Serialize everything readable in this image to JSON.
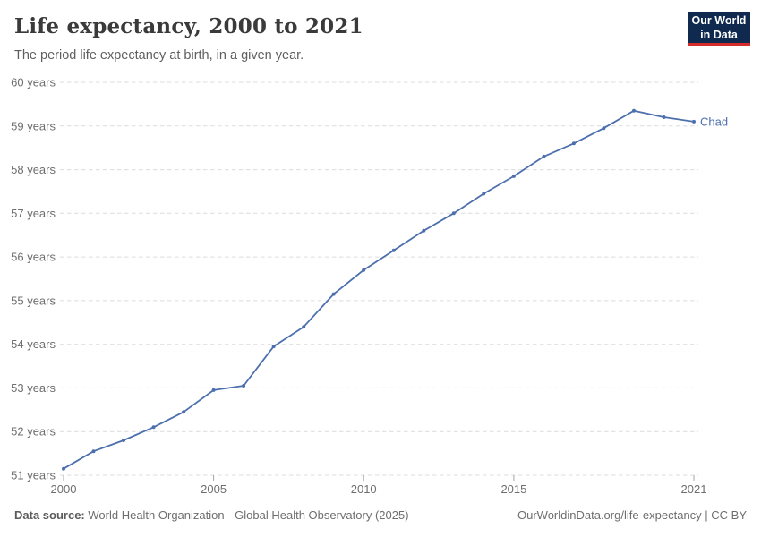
{
  "header": {
    "title": "Life expectancy, 2000 to 2021",
    "subtitle": "The period life expectancy at birth, in a given year."
  },
  "logo": {
    "line1": "Our World",
    "line2": "in Data"
  },
  "footer": {
    "source_label": "Data source:",
    "source_text": "World Health Organization - Global Health Observatory (2025)",
    "right_text": "OurWorldinData.org/life-expectancy | CC BY"
  },
  "chart_data": {
    "type": "line",
    "title": "Life expectancy, 2000 to 2021",
    "xlabel": "",
    "ylabel": "years",
    "x": [
      2000,
      2001,
      2002,
      2003,
      2004,
      2005,
      2006,
      2007,
      2008,
      2009,
      2010,
      2011,
      2012,
      2013,
      2014,
      2015,
      2016,
      2017,
      2018,
      2019,
      2020,
      2021
    ],
    "series": [
      {
        "name": "Chad",
        "color": "#4c6fad",
        "values": [
          51.15,
          51.55,
          51.8,
          52.1,
          52.45,
          52.95,
          53.05,
          53.95,
          54.4,
          55.15,
          55.7,
          56.15,
          56.6,
          57.0,
          57.45,
          57.85,
          58.3,
          58.6,
          58.95,
          59.35,
          59.2,
          59.1
        ]
      }
    ],
    "xlim": [
      2000,
      2021
    ],
    "ylim": [
      51,
      60
    ],
    "xticks": [
      2000,
      2005,
      2010,
      2015,
      2021
    ],
    "yticks": [
      51,
      52,
      53,
      54,
      55,
      56,
      57,
      58,
      59,
      60
    ],
    "ytick_suffix": " years",
    "grid": "horizontal-dashed",
    "legend_position": "end-of-line"
  },
  "colors": {
    "line": "#4c6fad",
    "grid": "#dcdcdc",
    "tick_mark": "#a5a5a5",
    "tick_text": "#6e6e6e",
    "logo_bg": "#0f2a4e",
    "logo_red": "#d42b2b"
  }
}
